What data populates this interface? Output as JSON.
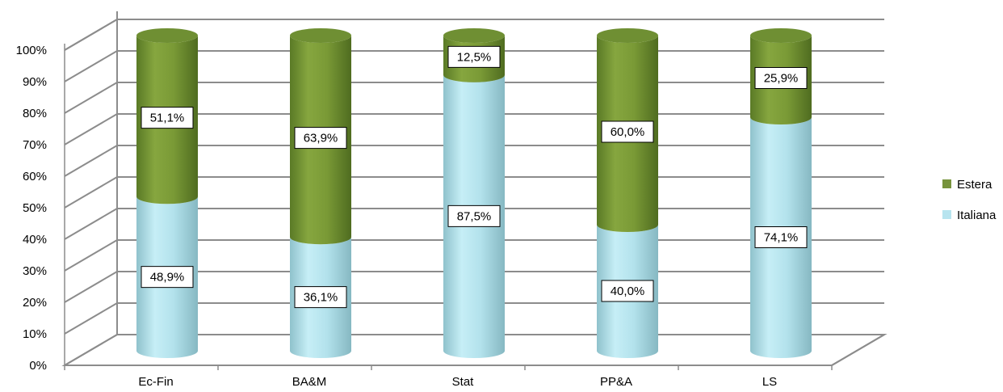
{
  "chart_data": {
    "type": "bar",
    "stacked": true,
    "percent_stacked": true,
    "style": "3d-cylinder",
    "categories": [
      "Ec-Fin",
      "BA&M",
      "Stat",
      "PP&A",
      "LS"
    ],
    "series": [
      {
        "name": "Italiana",
        "values": [
          48.9,
          36.1,
          87.5,
          40.0,
          74.1
        ],
        "labels": [
          "48,9%",
          "36,1%",
          "87,5%",
          "40,0%",
          "74,1%"
        ],
        "color": "#b7e4ef"
      },
      {
        "name": "Estera",
        "values": [
          51.1,
          63.9,
          12.5,
          60.0,
          25.9
        ],
        "labels": [
          "51,1%",
          "63,9%",
          "12,5%",
          "60,0%",
          "25,9%"
        ],
        "color": "#77933c"
      }
    ],
    "y_ticks": [
      "0%",
      "10%",
      "20%",
      "30%",
      "40%",
      "50%",
      "60%",
      "70%",
      "80%",
      "90%",
      "100%"
    ],
    "ylim": [
      0,
      100
    ],
    "grid": true,
    "legend_position": "right",
    "legend_order": [
      "Estera",
      "Italiana"
    ]
  }
}
